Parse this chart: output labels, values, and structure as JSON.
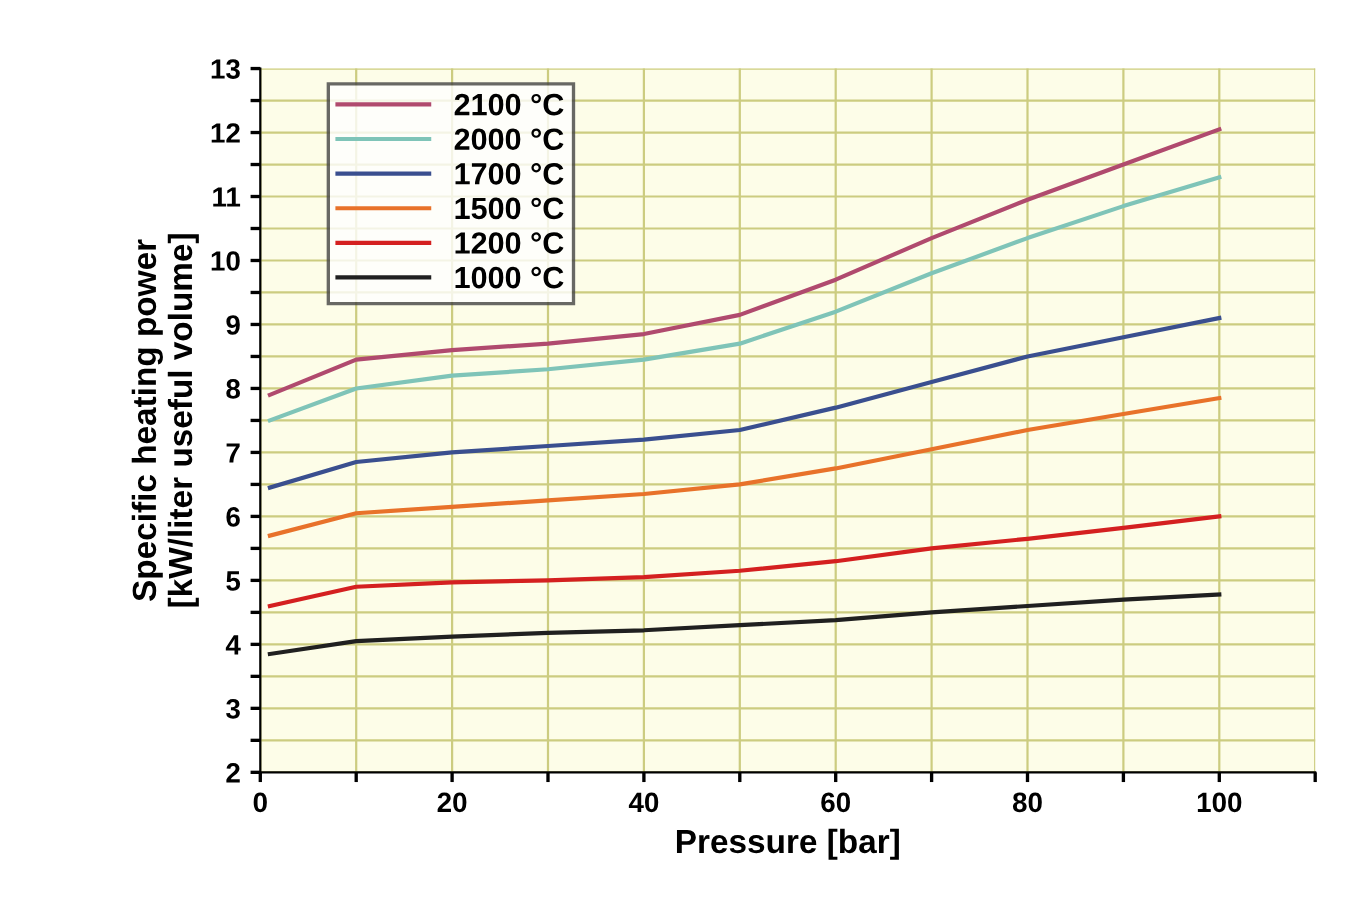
{
  "chart_data": {
    "type": "line",
    "xlabel": "Pressure [bar]",
    "ylabel": "Specific heating power\n[kW/liter useful volume]",
    "x": [
      1,
      10,
      20,
      30,
      40,
      50,
      60,
      70,
      80,
      90,
      100
    ],
    "xlim": [
      0,
      110
    ],
    "xticks": [
      0,
      {
        "value": 10,
        "label": null
      },
      20,
      {
        "value": 30,
        "label": null
      },
      40,
      {
        "value": 50,
        "label": null
      },
      60,
      {
        "value": 70,
        "label": null
      },
      80,
      {
        "value": 90,
        "label": null
      },
      100,
      {
        "value": 110,
        "label": null
      }
    ],
    "ylim": [
      2,
      13
    ],
    "yticks": [
      2,
      {
        "value": 2.5,
        "label": null
      },
      3,
      {
        "value": 3.5,
        "label": null
      },
      4,
      {
        "value": 4.5,
        "label": null
      },
      5,
      {
        "value": 5.5,
        "label": null
      },
      6,
      {
        "value": 6.5,
        "label": null
      },
      7,
      {
        "value": 7.5,
        "label": null
      },
      8,
      {
        "value": 8.5,
        "label": null
      },
      9,
      {
        "value": 9.5,
        "label": null
      },
      10,
      {
        "value": 10.5,
        "label": null
      },
      11,
      {
        "value": 11.5,
        "label": null
      },
      12,
      {
        "value": 12.5,
        "label": null
      },
      13
    ],
    "grid": true,
    "legend": "top left",
    "marker": "none",
    "line_style": "solid",
    "series": [
      {
        "name": "2100 °C",
        "color": "#b04a6e",
        "values": [
          7.9,
          8.45,
          8.6,
          8.7,
          8.85,
          9.15,
          9.7,
          10.35,
          10.95,
          11.5,
          12.05
        ]
      },
      {
        "name": "2000 °C",
        "color": "#7fc4b8",
        "values": [
          7.5,
          8.0,
          8.2,
          8.3,
          8.45,
          8.7,
          9.2,
          9.8,
          10.35,
          10.85,
          11.3
        ]
      },
      {
        "name": "1700 °C",
        "color": "#3a4f8f",
        "values": [
          6.45,
          6.85,
          7.0,
          7.1,
          7.2,
          7.35,
          7.7,
          8.1,
          8.5,
          8.8,
          9.1
        ]
      },
      {
        "name": "1500 °C",
        "color": "#e8722a",
        "values": [
          5.7,
          6.05,
          6.15,
          6.25,
          6.35,
          6.5,
          6.75,
          7.05,
          7.35,
          7.6,
          7.85
        ]
      },
      {
        "name": "1200 °C",
        "color": "#d42020",
        "values": [
          4.6,
          4.9,
          4.97,
          5.0,
          5.05,
          5.15,
          5.3,
          5.5,
          5.65,
          5.82,
          6.0
        ]
      },
      {
        "name": "1000 °C",
        "color": "#202020",
        "values": [
          3.85,
          4.05,
          4.12,
          4.18,
          4.22,
          4.3,
          4.38,
          4.5,
          4.6,
          4.7,
          4.78
        ]
      }
    ]
  }
}
